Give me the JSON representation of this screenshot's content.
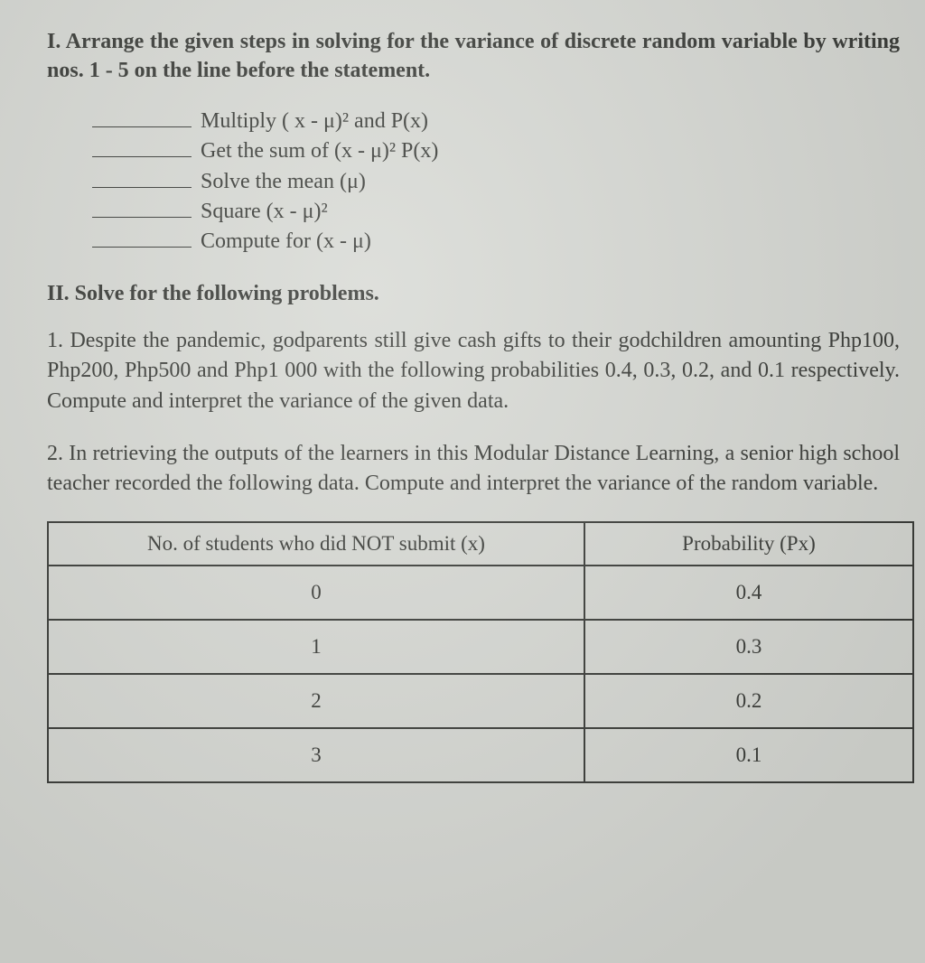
{
  "section1": {
    "title": "I. Arrange the given steps in solving for the variance of discrete random variable by writing nos. 1 - 5 on the line before the statement.",
    "steps": [
      "Multiply ( x - μ)² and P(x)",
      "Get the sum of (x - μ)² P(x)",
      "Solve the mean (μ)",
      "Square (x - μ)²",
      "Compute for (x - μ)"
    ]
  },
  "section2": {
    "title": "II. Solve for the following problems.",
    "problem1": "1. Despite the pandemic, godparents still give cash gifts to their godchildren amounting Php100, Php200, Php500 and Php1 000 with the following probabilities 0.4, 0.3, 0.2, and 0.1 respectively. Compute and interpret the variance of the given data.",
    "problem2": "2. In retrieving the outputs of the learners in this Modular Distance Learning, a senior high school teacher recorded the following data. Compute and interpret the variance of the random variable."
  },
  "table": {
    "type": "table",
    "columns": [
      "No. of students who did NOT submit (x)",
      "Probability (Px)"
    ],
    "col_widths": [
      "62%",
      "38%"
    ],
    "rows": [
      [
        "0",
        "0.4"
      ],
      [
        "1",
        "0.3"
      ],
      [
        "2",
        "0.2"
      ],
      [
        "3",
        "0.1"
      ]
    ],
    "border_color": "#3a3c38",
    "header_fontsize": 23,
    "cell_fontsize": 23,
    "row_padding": 16
  },
  "colors": {
    "background": "#d8dad5",
    "text": "#3a3c38",
    "border": "#3a3c38"
  },
  "typography": {
    "title_fontsize": 24,
    "body_fontsize": 24,
    "font_family": "Georgia, Times New Roman, serif"
  }
}
